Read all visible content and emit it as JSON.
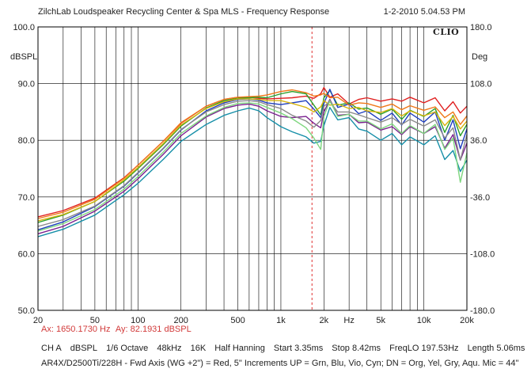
{
  "header": {
    "title": "ZilchLab Loudspeaker Recycling Center & Spa   MLS - Frequency Response",
    "datetime": "1-2-2010 5.04.53 PM",
    "brand": "CLIO"
  },
  "cursor": {
    "ax_label": "Ax: 1650.1730 Hz",
    "ay_label": "Ay: 82.1931 dBSPL",
    "x_hz": 1650.173
  },
  "settings": {
    "channel": "CH A",
    "unit": "dBSPL",
    "smoothing": "1/6 Octave",
    "rate": "48kHz",
    "size": "16K",
    "window": "Half Hanning",
    "start": "Start 3.35ms",
    "stop": "Stop 8.42ms",
    "freqlo": "FreqLO 197.53Hz",
    "length": "Length 5.06ms"
  },
  "note": "AR4X/D2500Ti/228H - Fwd Axis (WG +2\") = Red, 5\" Increments UP = Grn, Blu, Vio, Cyn; DN = Org, Yel, Gry, Aqu. Mic = 44\"",
  "chart_data": {
    "type": "line",
    "title": "MLS - Frequency Response",
    "xlabel": "Hz",
    "ylabel_left": "dBSPL",
    "ylabel_right": "Deg",
    "xscale": "log",
    "xlim": [
      20,
      20000
    ],
    "ylim": [
      50,
      100
    ],
    "y2lim": [
      -180,
      180
    ],
    "grid": true,
    "x_ticks": [
      {
        "v": 20,
        "label": "20"
      },
      {
        "v": 50,
        "label": "50"
      },
      {
        "v": 100,
        "label": "100"
      },
      {
        "v": 200,
        "label": "200"
      },
      {
        "v": 500,
        "label": "500"
      },
      {
        "v": 1000,
        "label": "1k"
      },
      {
        "v": 2000,
        "label": "2k"
      },
      {
        "v": 3000,
        "label": "Hz"
      },
      {
        "v": 5000,
        "label": "5k"
      },
      {
        "v": 10000,
        "label": "10k"
      },
      {
        "v": 20000,
        "label": "20k"
      }
    ],
    "y_ticks": [
      {
        "v": 100,
        "label": "100.0"
      },
      {
        "v": 90,
        "label": "90.0"
      },
      {
        "v": 80,
        "label": "80.0"
      },
      {
        "v": 70,
        "label": "70.0"
      },
      {
        "v": 60,
        "label": "60.0"
      },
      {
        "v": 50,
        "label": "50.0"
      }
    ],
    "y2_ticks": [
      {
        "v": 180,
        "label": "180.0"
      },
      {
        "v": 108,
        "label": "108.0"
      },
      {
        "v": 36,
        "label": "36.0"
      },
      {
        "v": -36,
        "label": "-36.0"
      },
      {
        "v": -108,
        "label": "-108.0"
      },
      {
        "v": -180,
        "label": "-180.0"
      }
    ],
    "x": [
      20,
      30,
      50,
      80,
      100,
      150,
      200,
      300,
      400,
      500,
      600,
      700,
      800,
      1000,
      1200,
      1500,
      1700,
      1900,
      2000,
      2200,
      2500,
      3000,
      3500,
      4000,
      5000,
      6000,
      7000,
      8000,
      10000,
      12000,
      14000,
      16000,
      18000,
      20000
    ],
    "series": [
      {
        "color": "#e02020",
        "values": [
          66.5,
          67.6,
          69.8,
          73.4,
          75.6,
          79.8,
          83.0,
          86.0,
          87.2,
          87.6,
          87.6,
          87.4,
          87.3,
          87.4,
          87.5,
          87.8,
          87.4,
          88.2,
          89.3,
          87.6,
          88.2,
          86.4,
          87.2,
          87.5,
          86.9,
          87.3,
          86.9,
          87.6,
          86.6,
          87.5,
          85.2,
          86.8,
          84.8,
          86.0
        ]
      },
      {
        "color": "#2aa02a",
        "values": [
          65.5,
          66.8,
          69.2,
          72.8,
          75.0,
          79.2,
          82.5,
          85.7,
          87.0,
          87.4,
          87.5,
          87.6,
          87.5,
          88.2,
          88.6,
          88.2,
          86.2,
          84.5,
          87.5,
          88.8,
          86.2,
          86.6,
          85.5,
          85.7,
          84.6,
          85.5,
          83.7,
          85.3,
          84.2,
          85.6,
          81.4,
          84.4,
          80.8,
          82.8
        ]
      },
      {
        "color": "#1f3fbf",
        "values": [
          64.2,
          65.6,
          68.3,
          71.9,
          74.2,
          78.5,
          81.8,
          85.2,
          86.6,
          87.2,
          87.3,
          87.1,
          86.6,
          86.3,
          86.6,
          87.0,
          85.5,
          84.0,
          86.5,
          89.0,
          85.8,
          86.4,
          84.7,
          85.2,
          83.5,
          84.8,
          82.7,
          84.8,
          83.2,
          85.0,
          80.0,
          83.6,
          78.5,
          82.0
        ]
      },
      {
        "color": "#7a1f8f",
        "values": [
          63.5,
          64.8,
          67.5,
          71.0,
          73.2,
          77.5,
          80.8,
          84.1,
          85.6,
          86.2,
          86.4,
          86.0,
          85.2,
          84.2,
          84.0,
          84.2,
          83.0,
          82.2,
          85.0,
          87.2,
          84.4,
          84.6,
          83.1,
          83.2,
          81.8,
          82.4,
          81.0,
          82.4,
          81.2,
          82.4,
          78.6,
          81.0,
          76.5,
          79.5
        ]
      },
      {
        "color": "#168fa8",
        "values": [
          63.0,
          64.3,
          66.8,
          70.4,
          72.4,
          76.6,
          79.8,
          82.8,
          84.4,
          85.2,
          85.7,
          85.2,
          84.0,
          82.4,
          81.5,
          80.6,
          79.5,
          79.8,
          82.6,
          85.8,
          83.6,
          84.0,
          82.0,
          81.6,
          80.0,
          81.2,
          79.2,
          80.6,
          79.2,
          80.8,
          76.6,
          78.2,
          74.5,
          76.5
        ]
      },
      {
        "color": "#f07818",
        "values": [
          66.2,
          67.3,
          69.6,
          73.3,
          75.6,
          79.8,
          83.1,
          86.0,
          87.2,
          87.6,
          87.7,
          87.8,
          88.0,
          88.6,
          88.9,
          88.4,
          87.8,
          88.0,
          88.3,
          87.5,
          87.6,
          86.2,
          86.6,
          86.5,
          85.8,
          86.4,
          85.4,
          86.1,
          85.3,
          85.9,
          84.0,
          85.0,
          82.8,
          84.3
        ]
      },
      {
        "color": "#d8b40c",
        "values": [
          65.8,
          66.9,
          69.2,
          73.0,
          75.2,
          79.4,
          82.7,
          85.6,
          86.8,
          87.3,
          87.3,
          87.2,
          87.0,
          87.0,
          86.5,
          85.8,
          85.0,
          85.9,
          87.0,
          86.2,
          86.4,
          85.6,
          85.8,
          85.2,
          84.9,
          85.6,
          84.3,
          85.2,
          84.3,
          85.0,
          82.6,
          84.2,
          82.0,
          83.4
        ]
      },
      {
        "color": "#8a8a8a",
        "values": [
          64.8,
          66.0,
          68.4,
          72.0,
          74.3,
          78.6,
          81.9,
          85.0,
          86.3,
          86.9,
          87.0,
          86.8,
          86.3,
          85.6,
          84.4,
          83.4,
          82.3,
          83.5,
          86.0,
          86.8,
          85.0,
          85.0,
          84.5,
          84.0,
          83.2,
          84.0,
          82.8,
          83.7,
          82.5,
          83.6,
          80.4,
          82.2,
          76.5,
          81.0
        ]
      },
      {
        "color": "#7ed67e",
        "values": [
          64.0,
          65.3,
          67.8,
          71.4,
          73.6,
          77.9,
          81.2,
          84.3,
          85.8,
          86.5,
          86.6,
          86.4,
          85.8,
          84.8,
          83.8,
          82.2,
          80.4,
          78.4,
          84.2,
          87.0,
          84.2,
          84.6,
          83.4,
          83.4,
          82.0,
          82.9,
          81.2,
          82.6,
          81.2,
          82.8,
          78.4,
          80.4,
          72.6,
          77.8
        ]
      }
    ]
  }
}
